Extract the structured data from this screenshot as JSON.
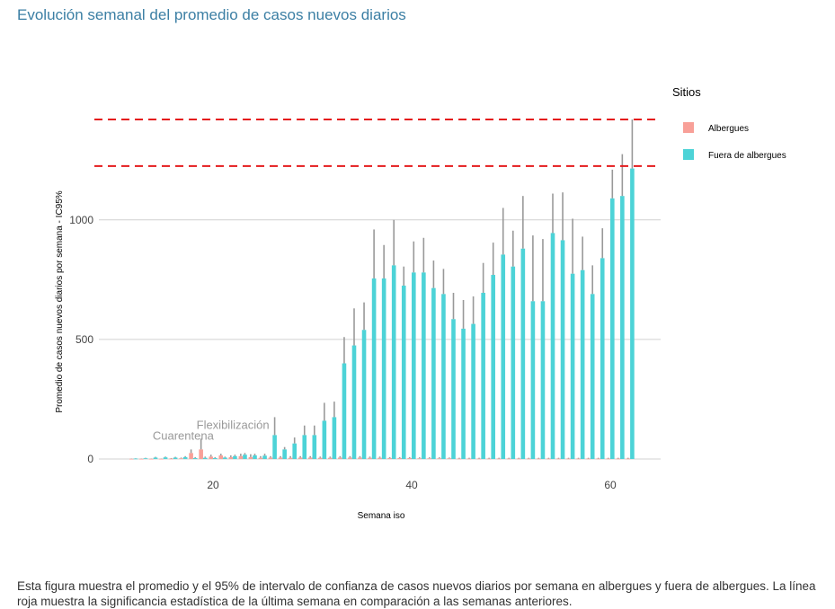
{
  "page": {
    "title": "Evolución semanal del promedio de casos nuevos diarios",
    "caption": "Esta figura muestra el promedio y el 95% de intervalo de confianza de casos nuevos diarios por semana en albergues y fuera de albergues. La línea roja muestra la significancia estadística de la última semana en comparación a las semanas anteriores."
  },
  "chart_data": {
    "type": "bar",
    "xlabel": "Semana iso",
    "ylabel": "Promedio de casos nuevos diarios por semana - IC95%",
    "xlim": [
      10,
      65
    ],
    "ylim": [
      0,
      1420
    ],
    "x_ticks": [
      20,
      40,
      60
    ],
    "y_ticks": [
      0,
      500,
      1000
    ],
    "reference_lines": [
      1420,
      1225
    ],
    "reference_color": "#e41a1c",
    "legend": {
      "title": "Sitios",
      "items": [
        {
          "label": "Albergues",
          "color": "#f8a098"
        },
        {
          "label": "Fuera de albergues",
          "color": "#4dd3d7"
        }
      ]
    },
    "annotations": [
      {
        "text": "Cuarentena",
        "x": 17,
        "y": 80
      },
      {
        "text": "Flexibilización",
        "x": 22,
        "y": 125
      }
    ],
    "error_color": "#999999",
    "series": [
      {
        "name": "Albergues",
        "color": "#f8a098",
        "points": [
          {
            "x": 12,
            "y": 1,
            "upper": 2
          },
          {
            "x": 13,
            "y": 1,
            "upper": 2
          },
          {
            "x": 14,
            "y": 1,
            "upper": 2
          },
          {
            "x": 15,
            "y": 1,
            "upper": 2
          },
          {
            "x": 16,
            "y": 2,
            "upper": 4
          },
          {
            "x": 17,
            "y": 3,
            "upper": 6
          },
          {
            "x": 18,
            "y": 25,
            "upper": 40
          },
          {
            "x": 19,
            "y": 40,
            "upper": 85
          },
          {
            "x": 20,
            "y": 10,
            "upper": 18
          },
          {
            "x": 21,
            "y": 15,
            "upper": 22
          },
          {
            "x": 22,
            "y": 8,
            "upper": 15
          },
          {
            "x": 23,
            "y": 12,
            "upper": 22
          },
          {
            "x": 24,
            "y": 8,
            "upper": 20
          },
          {
            "x": 25,
            "y": 5,
            "upper": 12
          },
          {
            "x": 26,
            "y": 6,
            "upper": 12
          },
          {
            "x": 27,
            "y": 6,
            "upper": 12
          },
          {
            "x": 28,
            "y": 5,
            "upper": 12
          },
          {
            "x": 29,
            "y": 6,
            "upper": 12
          },
          {
            "x": 30,
            "y": 6,
            "upper": 12
          },
          {
            "x": 31,
            "y": 5,
            "upper": 10
          },
          {
            "x": 32,
            "y": 5,
            "upper": 10
          },
          {
            "x": 33,
            "y": 6,
            "upper": 12
          },
          {
            "x": 34,
            "y": 6,
            "upper": 12
          },
          {
            "x": 35,
            "y": 6,
            "upper": 12
          },
          {
            "x": 36,
            "y": 5,
            "upper": 10
          },
          {
            "x": 37,
            "y": 5,
            "upper": 10
          },
          {
            "x": 38,
            "y": 4,
            "upper": 8
          },
          {
            "x": 39,
            "y": 4,
            "upper": 8
          },
          {
            "x": 40,
            "y": 4,
            "upper": 8
          },
          {
            "x": 41,
            "y": 3,
            "upper": 7
          },
          {
            "x": 42,
            "y": 3,
            "upper": 7
          },
          {
            "x": 43,
            "y": 3,
            "upper": 7
          },
          {
            "x": 44,
            "y": 3,
            "upper": 6
          },
          {
            "x": 45,
            "y": 2,
            "upper": 5
          },
          {
            "x": 46,
            "y": 2,
            "upper": 5
          },
          {
            "x": 47,
            "y": 2,
            "upper": 5
          },
          {
            "x": 48,
            "y": 2,
            "upper": 5
          },
          {
            "x": 49,
            "y": 2,
            "upper": 5
          },
          {
            "x": 50,
            "y": 2,
            "upper": 5
          },
          {
            "x": 51,
            "y": 2,
            "upper": 5
          },
          {
            "x": 52,
            "y": 2,
            "upper": 5
          },
          {
            "x": 53,
            "y": 2,
            "upper": 5
          },
          {
            "x": 54,
            "y": 2,
            "upper": 5
          },
          {
            "x": 55,
            "y": 2,
            "upper": 5
          },
          {
            "x": 56,
            "y": 2,
            "upper": 5
          },
          {
            "x": 57,
            "y": 2,
            "upper": 5
          },
          {
            "x": 58,
            "y": 2,
            "upper": 5
          },
          {
            "x": 59,
            "y": 2,
            "upper": 5
          },
          {
            "x": 60,
            "y": 2,
            "upper": 5
          },
          {
            "x": 61,
            "y": 2,
            "upper": 5
          },
          {
            "x": 62,
            "y": 2,
            "upper": 5
          }
        ]
      },
      {
        "name": "Fuera de albergues",
        "color": "#4dd3d7",
        "points": [
          {
            "x": 12,
            "y": 2,
            "upper": 3
          },
          {
            "x": 13,
            "y": 3,
            "upper": 5
          },
          {
            "x": 14,
            "y": 6,
            "upper": 9
          },
          {
            "x": 15,
            "y": 7,
            "upper": 10
          },
          {
            "x": 16,
            "y": 6,
            "upper": 9
          },
          {
            "x": 17,
            "y": 8,
            "upper": 12
          },
          {
            "x": 18,
            "y": 4,
            "upper": 8
          },
          {
            "x": 19,
            "y": 5,
            "upper": 10
          },
          {
            "x": 20,
            "y": 4,
            "upper": 8
          },
          {
            "x": 21,
            "y": 6,
            "upper": 10
          },
          {
            "x": 22,
            "y": 12,
            "upper": 18
          },
          {
            "x": 23,
            "y": 18,
            "upper": 25
          },
          {
            "x": 24,
            "y": 15,
            "upper": 22
          },
          {
            "x": 25,
            "y": 14,
            "upper": 22
          },
          {
            "x": 26,
            "y": 100,
            "upper": 175
          },
          {
            "x": 27,
            "y": 40,
            "upper": 50
          },
          {
            "x": 28,
            "y": 65,
            "upper": 90
          },
          {
            "x": 29,
            "y": 100,
            "upper": 140
          },
          {
            "x": 30,
            "y": 100,
            "upper": 140
          },
          {
            "x": 31,
            "y": 160,
            "upper": 235
          },
          {
            "x": 32,
            "y": 175,
            "upper": 240
          },
          {
            "x": 33,
            "y": 400,
            "upper": 510
          },
          {
            "x": 34,
            "y": 475,
            "upper": 630
          },
          {
            "x": 35,
            "y": 540,
            "upper": 655
          },
          {
            "x": 36,
            "y": 755,
            "upper": 960
          },
          {
            "x": 37,
            "y": 755,
            "upper": 895
          },
          {
            "x": 38,
            "y": 810,
            "upper": 1000
          },
          {
            "x": 39,
            "y": 725,
            "upper": 805
          },
          {
            "x": 40,
            "y": 780,
            "upper": 910
          },
          {
            "x": 41,
            "y": 780,
            "upper": 925
          },
          {
            "x": 42,
            "y": 715,
            "upper": 830
          },
          {
            "x": 43,
            "y": 690,
            "upper": 795
          },
          {
            "x": 44,
            "y": 585,
            "upper": 695
          },
          {
            "x": 45,
            "y": 545,
            "upper": 665
          },
          {
            "x": 46,
            "y": 565,
            "upper": 680
          },
          {
            "x": 47,
            "y": 695,
            "upper": 820
          },
          {
            "x": 48,
            "y": 770,
            "upper": 905
          },
          {
            "x": 49,
            "y": 855,
            "upper": 1050
          },
          {
            "x": 50,
            "y": 805,
            "upper": 955
          },
          {
            "x": 51,
            "y": 880,
            "upper": 1100
          },
          {
            "x": 52,
            "y": 660,
            "upper": 935
          },
          {
            "x": 53,
            "y": 660,
            "upper": 920
          },
          {
            "x": 54,
            "y": 945,
            "upper": 1110
          },
          {
            "x": 55,
            "y": 915,
            "upper": 1115
          },
          {
            "x": 56,
            "y": 775,
            "upper": 1005
          },
          {
            "x": 57,
            "y": 790,
            "upper": 930
          },
          {
            "x": 58,
            "y": 690,
            "upper": 810
          },
          {
            "x": 59,
            "y": 840,
            "upper": 965
          },
          {
            "x": 60,
            "y": 1090,
            "upper": 1210
          },
          {
            "x": 61,
            "y": 1100,
            "upper": 1275
          },
          {
            "x": 62,
            "y": 1215,
            "upper": 1420
          }
        ]
      }
    ]
  }
}
